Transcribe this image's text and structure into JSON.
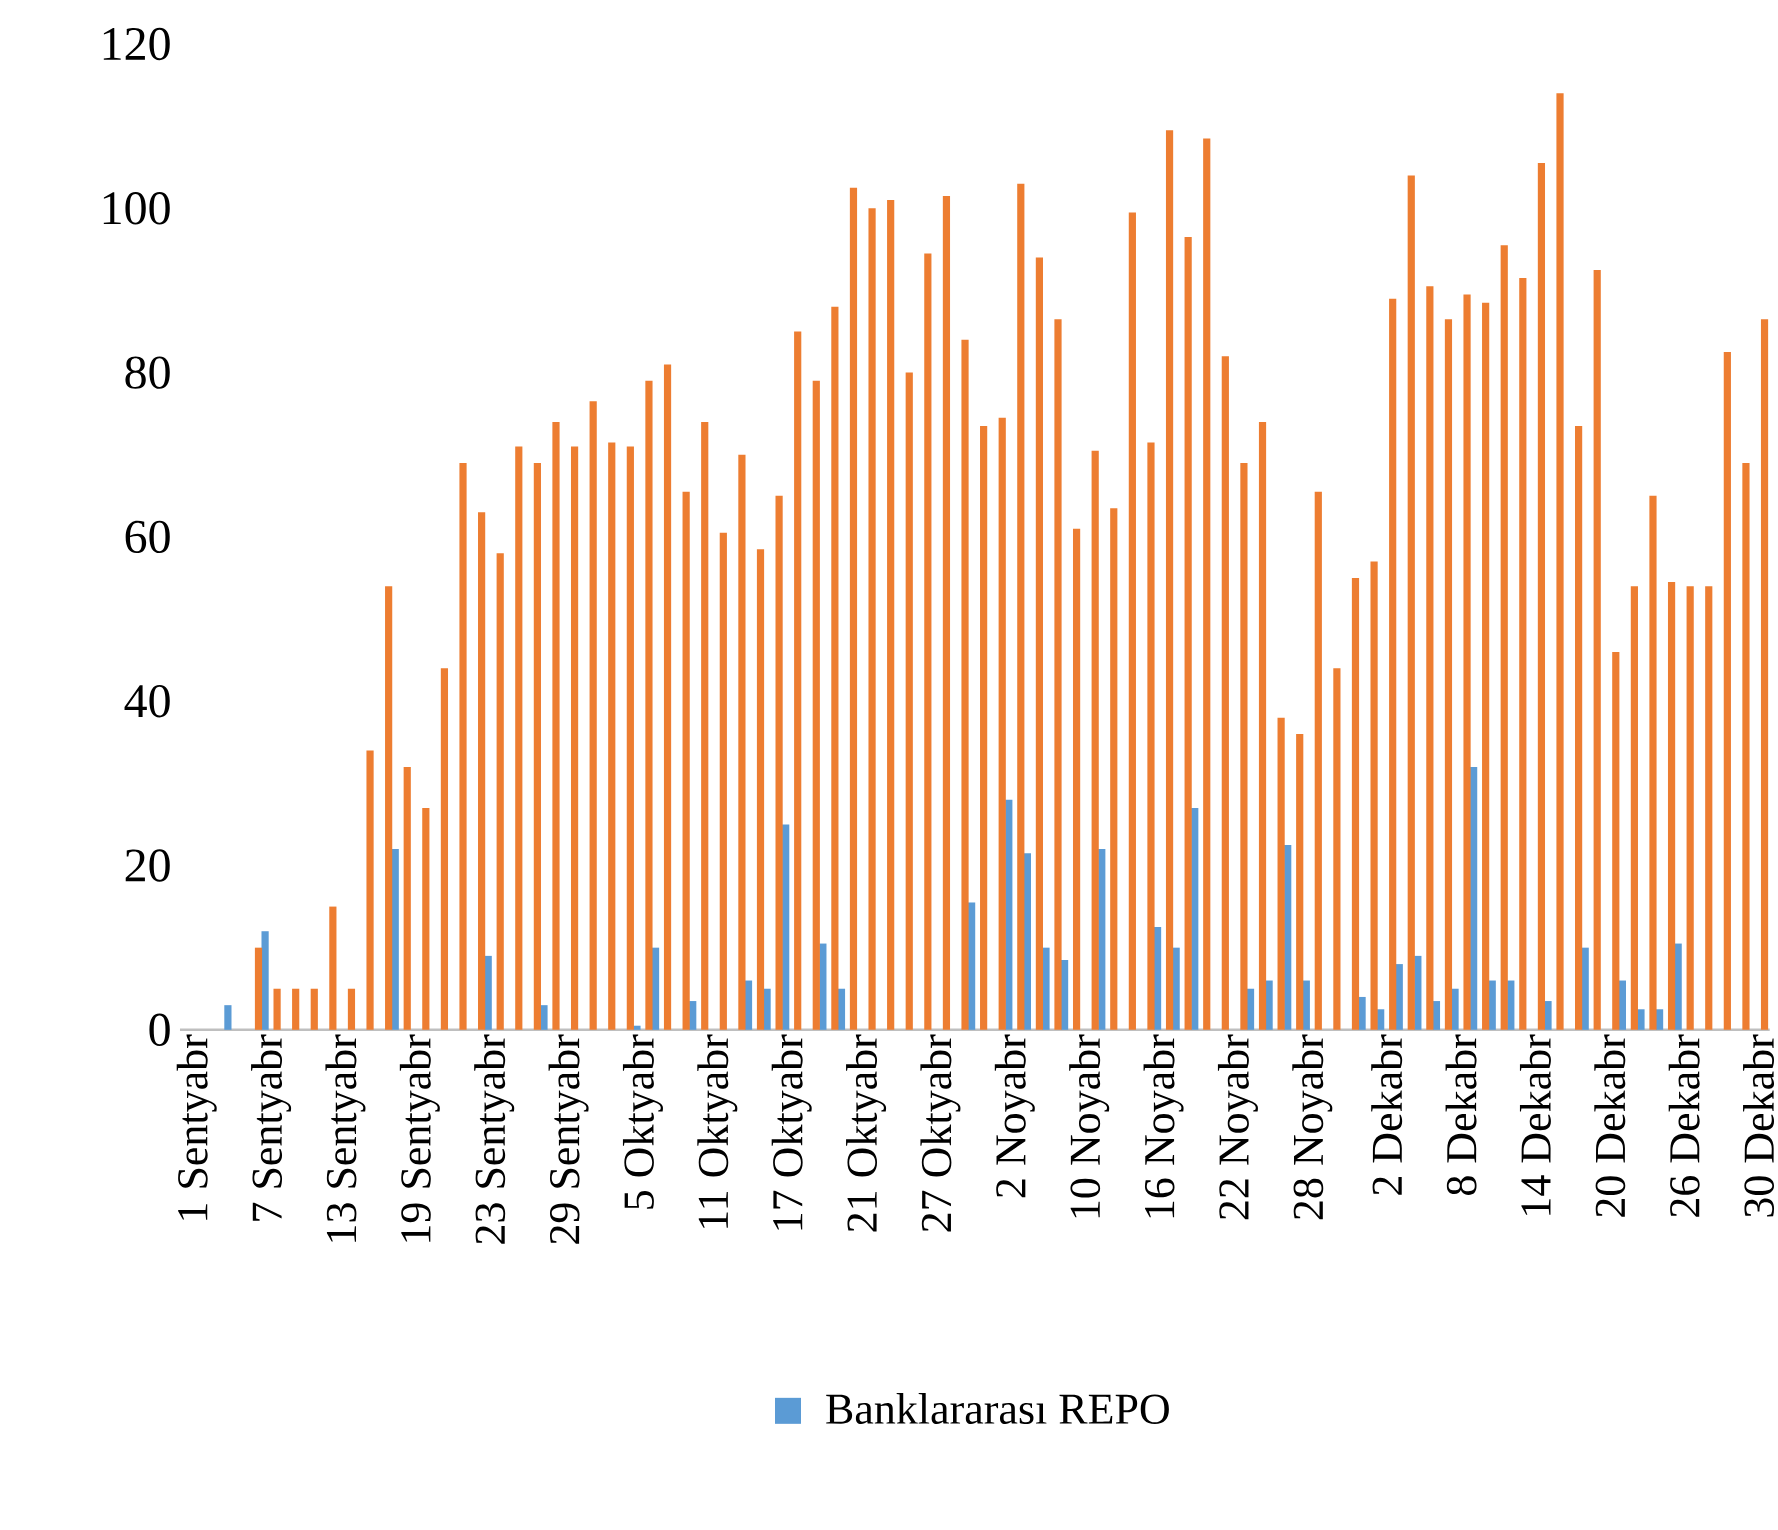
{
  "chart_data": {
    "type": "bar",
    "categories": [
      "1 Sentyabr",
      null,
      null,
      null,
      "7 Sentyabr",
      null,
      null,
      null,
      "13 Sentyabr",
      null,
      null,
      null,
      "19 Sentyabr",
      null,
      null,
      null,
      "23 Sentyabr",
      null,
      null,
      null,
      "29 Sentyabr",
      null,
      null,
      null,
      "5 Oktyabr",
      null,
      null,
      null,
      "11 Oktyabr",
      null,
      null,
      null,
      "17 Oktyabr",
      null,
      null,
      null,
      "21 Oktyabr",
      null,
      null,
      null,
      "27 Oktyabr",
      null,
      null,
      null,
      "2 Noyabr",
      null,
      null,
      null,
      "10 Noyabr",
      null,
      null,
      null,
      "16 Noyabr",
      null,
      null,
      null,
      "22 Noyabr",
      null,
      null,
      null,
      "28 Noyabr",
      null,
      null,
      null,
      "2 Dekabr",
      null,
      null,
      null,
      "8 Dekabr",
      null,
      null,
      null,
      "14 Dekabr",
      null,
      null,
      null,
      "20 Dekabr",
      null,
      null,
      null,
      "26 Dekabr",
      null,
      null,
      null,
      "30 Dekabr"
    ],
    "series": [
      {
        "name": "Banklararası REPO",
        "color": "#5b9bd5",
        "values": [
          null,
          null,
          3,
          null,
          12,
          null,
          null,
          null,
          null,
          null,
          null,
          22,
          null,
          null,
          null,
          null,
          9,
          null,
          null,
          3,
          null,
          null,
          null,
          null,
          0.5,
          10,
          null,
          3.5,
          null,
          null,
          6,
          5,
          25,
          null,
          10.5,
          5,
          null,
          null,
          null,
          null,
          null,
          null,
          15.5,
          null,
          28,
          21.5,
          10,
          8.5,
          null,
          22,
          null,
          null,
          12.5,
          10,
          27,
          null,
          null,
          5,
          6,
          22.5,
          6,
          null,
          null,
          4,
          2.5,
          8,
          9,
          3.5,
          5,
          32,
          6,
          6,
          null,
          3.5,
          null,
          10,
          null,
          6,
          2.5,
          2.5,
          10.5,
          null,
          null,
          null,
          null
        ]
      },
      {
        "color": "#ed7d31",
        "values": [
          null,
          null,
          null,
          10,
          5,
          5,
          5,
          15,
          5,
          34,
          54,
          32,
          27,
          44,
          69,
          63,
          58,
          71,
          69,
          74,
          71,
          76.5,
          71.5,
          71,
          79,
          81,
          65.5,
          74,
          60.5,
          70,
          58.5,
          65,
          85,
          79,
          88,
          102.5,
          100,
          101,
          80,
          94.5,
          101.5,
          84,
          73.5,
          74.5,
          103,
          94,
          86.5,
          61,
          70.5,
          63.5,
          99.5,
          71.5,
          109.5,
          96.5,
          108.5,
          82,
          69,
          74,
          38,
          36,
          65.5,
          44,
          55,
          57,
          89,
          104,
          90.5,
          86.5,
          89.5,
          88.5,
          95.5,
          91.5,
          105.5,
          114,
          73.5,
          92.5,
          46,
          54,
          65,
          54.5,
          54,
          54,
          82.5,
          69,
          86.5
        ]
      }
    ],
    "ylim": [
      0,
      120
    ],
    "yticks": [
      0,
      20,
      40,
      60,
      80,
      100,
      120
    ],
    "legend": "bottom"
  }
}
